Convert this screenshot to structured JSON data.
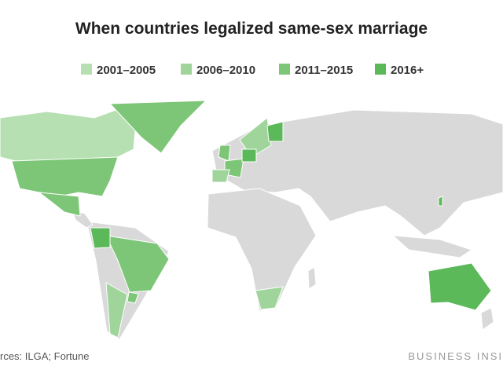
{
  "title": "When countries legalized same-sex marriage",
  "legend": [
    {
      "label": "2001–2005",
      "color": "#b7e0b2"
    },
    {
      "label": "2006–2010",
      "color": "#9fd59a"
    },
    {
      "label": "2011–2015",
      "color": "#7dc677"
    },
    {
      "label": "2016+",
      "color": "#5cb95a"
    }
  ],
  "source": "rces: ILGA; Fortune",
  "brand": "BUSINESS INSI"
}
